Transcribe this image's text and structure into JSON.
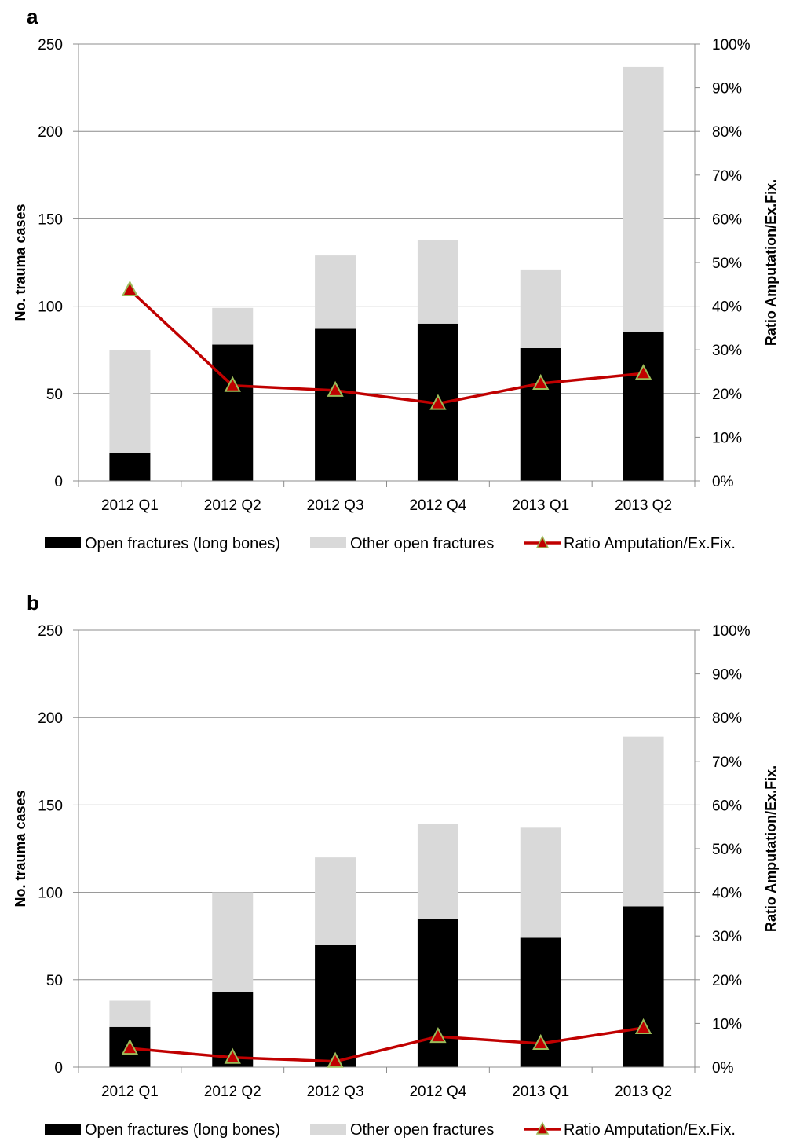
{
  "chart_data": [
    {
      "panel_label": "a",
      "type": "bar",
      "stacked": true,
      "categories": [
        "2012 Q1",
        "2012 Q2",
        "2012 Q3",
        "2012 Q4",
        "2013 Q1",
        "2013 Q2"
      ],
      "series": [
        {
          "name": "Open fractures (long bones)",
          "type": "bar",
          "axis": "left",
          "color": "#000000",
          "values": [
            16,
            78,
            87,
            90,
            76,
            85
          ]
        },
        {
          "name": "Other open fractures",
          "type": "bar",
          "axis": "left",
          "color": "#d9d9d9",
          "values": [
            59,
            21,
            42,
            48,
            45,
            152
          ]
        },
        {
          "name": "Ratio Amputation/Ex.Fix.",
          "type": "line",
          "axis": "right",
          "color": "#c00000",
          "marker_color": "#c00000",
          "marker_edge": "#9bbb59",
          "values": [
            43.7,
            21.8,
            20.7,
            17.7,
            22.3,
            24.6
          ]
        }
      ],
      "ylabel": "No. trauma cases",
      "ylabel_right": "Ratio Amputation/Ex.Fix.",
      "ylim": [
        0,
        250
      ],
      "ylim_right": [
        0,
        100
      ],
      "yticks": [
        "0",
        "50",
        "100",
        "150",
        "200",
        "250"
      ],
      "yticks_right": [
        "0%",
        "10%",
        "20%",
        "30%",
        "40%",
        "50%",
        "60%",
        "70%",
        "80%",
        "90%",
        "100%"
      ],
      "grid": true,
      "legend_position": "bottom"
    },
    {
      "panel_label": "b",
      "type": "bar",
      "stacked": true,
      "categories": [
        "2012 Q1",
        "2012 Q2",
        "2012 Q3",
        "2012 Q4",
        "2013 Q1",
        "2013 Q2"
      ],
      "series": [
        {
          "name": "Open fractures (long bones)",
          "type": "bar",
          "axis": "left",
          "color": "#000000",
          "values": [
            23,
            43,
            70,
            85,
            74,
            92
          ]
        },
        {
          "name": "Other open fractures",
          "type": "bar",
          "axis": "left",
          "color": "#d9d9d9",
          "values": [
            15,
            57,
            50,
            54,
            63,
            97
          ]
        },
        {
          "name": "Ratio Amputation/Ex.Fix.",
          "type": "line",
          "axis": "right",
          "color": "#c00000",
          "marker_color": "#c00000",
          "marker_edge": "#9bbb59",
          "values": [
            4.3,
            2.2,
            1.3,
            7.0,
            5.4,
            9.0
          ]
        }
      ],
      "ylabel": "No. trauma cases",
      "ylabel_right": "Ratio Amputation/Ex.Fix.",
      "ylim": [
        0,
        250
      ],
      "ylim_right": [
        0,
        100
      ],
      "yticks": [
        "0",
        "50",
        "100",
        "150",
        "200",
        "250"
      ],
      "yticks_right": [
        "0%",
        "10%",
        "20%",
        "30%",
        "40%",
        "50%",
        "60%",
        "70%",
        "80%",
        "90%",
        "100%"
      ],
      "grid": true,
      "legend_position": "bottom"
    }
  ]
}
